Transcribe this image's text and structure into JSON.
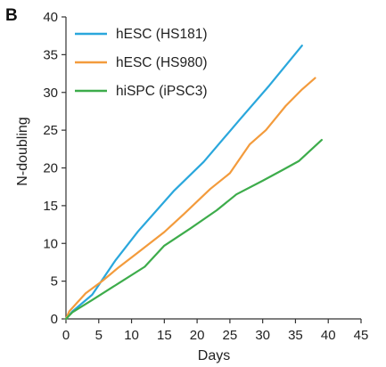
{
  "chart_data": {
    "type": "line",
    "panel_label": "B",
    "title": "",
    "xlabel": "Days",
    "ylabel": "N-doubling",
    "xlim": [
      0,
      45
    ],
    "ylim": [
      0,
      40
    ],
    "xticks": [
      "0",
      "5",
      "10",
      "15",
      "20",
      "25",
      "30",
      "35",
      "40",
      "45"
    ],
    "yticks": [
      "0",
      "5",
      "10",
      "15",
      "20",
      "25",
      "30",
      "35",
      "40"
    ],
    "grid": false,
    "legend_position": "top-left",
    "series": [
      {
        "name": "hESC (HS181)",
        "color": "#2aa7dc",
        "points": [
          [
            0,
            0
          ],
          [
            1,
            1.0
          ],
          [
            4,
            3.2
          ],
          [
            7.5,
            7.7
          ],
          [
            11,
            11.6
          ],
          [
            16.5,
            17.0
          ],
          [
            21,
            20.8
          ],
          [
            26.5,
            26.4
          ],
          [
            31,
            30.9
          ],
          [
            36,
            36.2
          ]
        ]
      },
      {
        "name": "hESC (HS980)",
        "color": "#f39b3c",
        "points": [
          [
            0,
            0
          ],
          [
            0.5,
            1.0
          ],
          [
            3,
            3.4
          ],
          [
            5.5,
            5.0
          ],
          [
            8,
            6.8
          ],
          [
            11,
            8.8
          ],
          [
            15,
            11.5
          ],
          [
            18,
            13.9
          ],
          [
            22,
            17.2
          ],
          [
            25,
            19.3
          ],
          [
            28,
            23.1
          ],
          [
            30.5,
            25.0
          ],
          [
            33.5,
            28.2
          ],
          [
            36,
            30.4
          ],
          [
            38,
            31.9
          ]
        ]
      },
      {
        "name": "hiSPC (iPSC3)",
        "color": "#3dac4b",
        "points": [
          [
            0,
            0
          ],
          [
            1,
            0.9
          ],
          [
            4,
            2.5
          ],
          [
            8,
            4.7
          ],
          [
            12,
            6.9
          ],
          [
            15,
            9.7
          ],
          [
            19,
            12.0
          ],
          [
            23,
            14.4
          ],
          [
            26,
            16.5
          ],
          [
            30,
            18.3
          ],
          [
            33,
            19.7
          ],
          [
            35.5,
            20.9
          ],
          [
            39,
            23.7
          ]
        ]
      }
    ]
  }
}
